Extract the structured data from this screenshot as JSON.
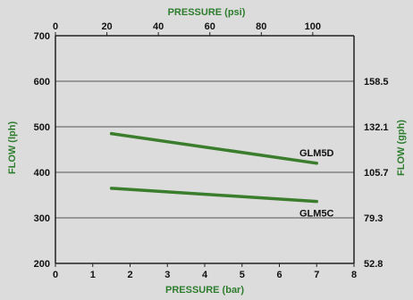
{
  "chart_data": {
    "type": "line",
    "title": "",
    "x_bottom": {
      "label": "PRESSURE (bar)",
      "range": [
        0,
        8
      ],
      "ticks": [
        "0",
        "1",
        "2",
        "3",
        "4",
        "5",
        "6",
        "7",
        "8"
      ]
    },
    "x_top": {
      "label": "PRESSURE (psi)",
      "ticks": [
        "0",
        "20",
        "40",
        "60",
        "80",
        "100"
      ],
      "tick_values_bar": [
        0,
        1.379,
        2.758,
        4.137,
        5.516,
        6.895
      ]
    },
    "y_left": {
      "label": "FLOW (lph)",
      "range": [
        200,
        700
      ],
      "ticks": [
        "200",
        "300",
        "400",
        "500",
        "600",
        "700"
      ]
    },
    "y_right": {
      "label": "FLOW (gph)",
      "ticks": [
        "52.8",
        "79.3",
        "105.7",
        "132.1",
        "158.5"
      ],
      "tick_values_lph": [
        200,
        300,
        400,
        500,
        600
      ]
    },
    "grid": "horizontal",
    "series": [
      {
        "name": "GLM5D",
        "x": [
          1.5,
          7
        ],
        "y": [
          485,
          420
        ]
      },
      {
        "name": "GLM5C",
        "x": [
          1.5,
          7
        ],
        "y": [
          365,
          336
        ]
      }
    ],
    "colors": {
      "axis_title": "#2e7d2e",
      "series_line": "#3a7d2c",
      "background": "#dcdcdc",
      "axis": "#222222"
    }
  }
}
